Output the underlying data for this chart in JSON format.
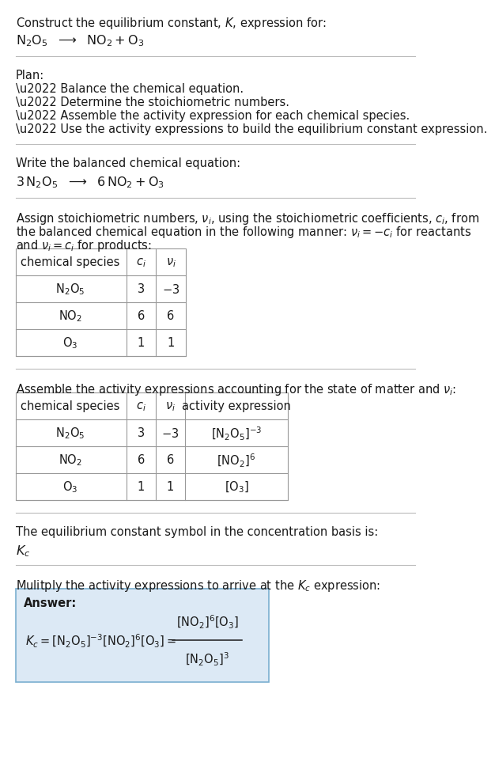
{
  "bg_color": "#ffffff",
  "title_line1": "Construct the equilibrium constant, $K$, expression for:",
  "title_eq": "$\\mathrm{N_2O_5}$  $\\longrightarrow$  $\\mathrm{NO_2 + O_3}$",
  "plan_header": "Plan:",
  "plan_bullets": [
    "\\u2022 Balance the chemical equation.",
    "\\u2022 Determine the stoichiometric numbers.",
    "\\u2022 Assemble the activity expression for each chemical species.",
    "\\u2022 Use the activity expressions to build the equilibrium constant expression."
  ],
  "balanced_header": "Write the balanced chemical equation:",
  "balanced_eq": "$3\\,\\mathrm{N_2O_5}$  $\\longrightarrow$  $6\\,\\mathrm{NO_2} + \\mathrm{O_3}$",
  "table1_headers": [
    "chemical species",
    "$c_i$",
    "$\\nu_i$"
  ],
  "table1_rows": [
    [
      "$\\mathrm{N_2O_5}$",
      "3",
      "$-3$"
    ],
    [
      "$\\mathrm{NO_2}$",
      "6",
      "6"
    ],
    [
      "$\\mathrm{O_3}$",
      "1",
      "1"
    ]
  ],
  "table2_headers": [
    "chemical species",
    "$c_i$",
    "$\\nu_i$",
    "activity expression"
  ],
  "table2_rows": [
    [
      "$\\mathrm{N_2O_5}$",
      "3",
      "$-3$",
      "$[\\mathrm{N_2O_5}]^{-3}$"
    ],
    [
      "$\\mathrm{NO_2}$",
      "6",
      "6",
      "$[\\mathrm{NO_2}]^{6}$"
    ],
    [
      "$\\mathrm{O_3}$",
      "1",
      "1",
      "$[\\mathrm{O_3}]$"
    ]
  ],
  "kc_header": "The equilibrium constant symbol in the concentration basis is:",
  "kc_symbol": "$K_c$",
  "multiply_header": "Mulitply the activity expressions to arrive at the $K_c$ expression:",
  "answer_label": "Answer:",
  "answer_box_color": "#dce9f5",
  "answer_box_border": "#7aafd0",
  "line_color": "#bbbbbb"
}
